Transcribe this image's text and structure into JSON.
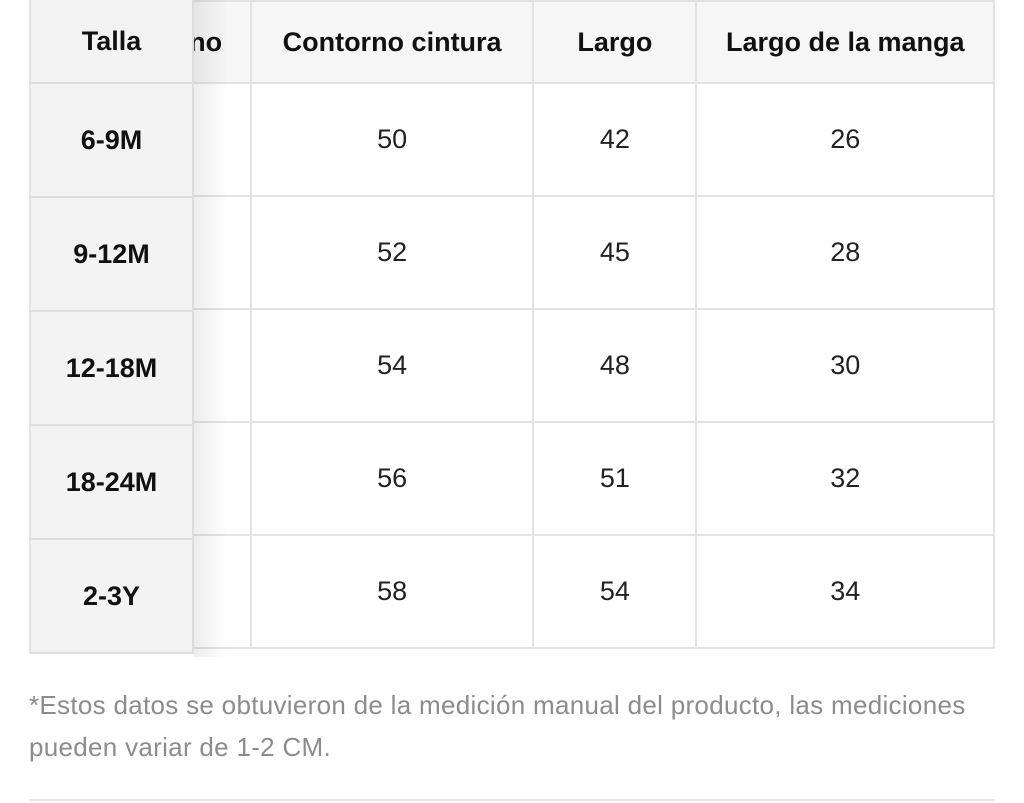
{
  "table": {
    "headers": {
      "size": "Talla",
      "hidden_partial": "no",
      "waist": "Contorno cintura",
      "length": "Largo",
      "sleeve": "Largo de la manga"
    },
    "rows": [
      {
        "size": "6-9M",
        "waist": "50",
        "length": "42",
        "sleeve": "26"
      },
      {
        "size": "9-12M",
        "waist": "52",
        "length": "45",
        "sleeve": "28"
      },
      {
        "size": "12-18M",
        "waist": "54",
        "length": "48",
        "sleeve": "30"
      },
      {
        "size": "18-24M",
        "waist": "56",
        "length": "51",
        "sleeve": "32"
      },
      {
        "size": "2-3Y",
        "waist": "58",
        "length": "54",
        "sleeve": "34"
      }
    ]
  },
  "footnote": "*Estos datos se obtuvieron de la medición manual del producto, las mediciones pueden variar de 1-2 CM."
}
